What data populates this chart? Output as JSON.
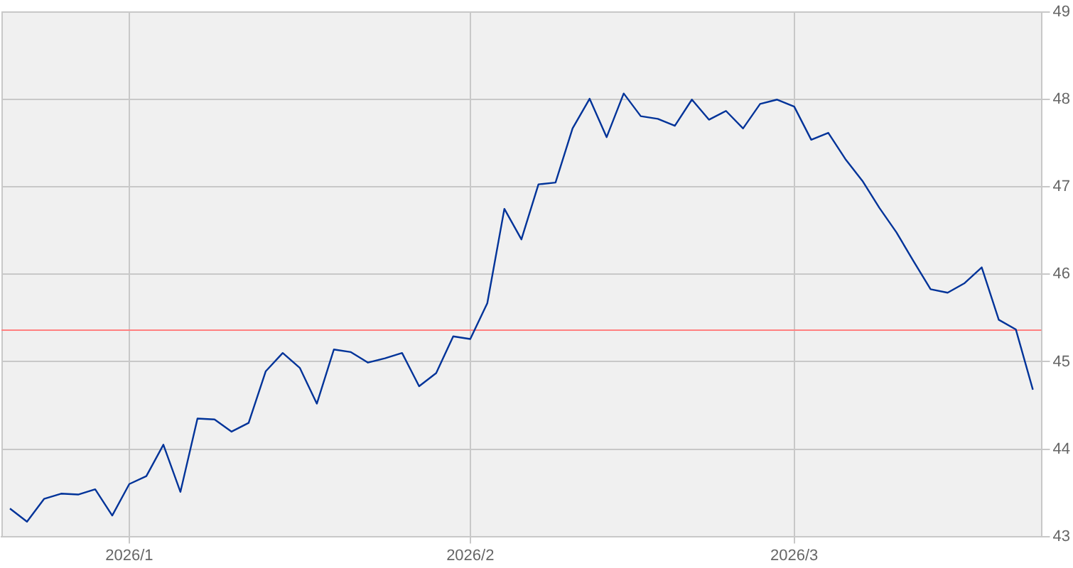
{
  "chart_data": {
    "type": "line",
    "categories": [
      null,
      null,
      null,
      null,
      null,
      null,
      null,
      "2026/1",
      null,
      null,
      null,
      null,
      null,
      null,
      null,
      null,
      null,
      null,
      null,
      null,
      null,
      null,
      null,
      null,
      null,
      null,
      null,
      "2026/2",
      null,
      null,
      null,
      null,
      null,
      null,
      null,
      null,
      null,
      null,
      null,
      null,
      null,
      null,
      null,
      null,
      null,
      null,
      "2026/3",
      null,
      null,
      null,
      null,
      null,
      null,
      null,
      null,
      null,
      null,
      null,
      null,
      null,
      null
    ],
    "values": [
      43.32,
      43.17,
      43.43,
      43.49,
      43.48,
      43.54,
      43.24,
      43.6,
      43.69,
      44.05,
      43.51,
      44.35,
      44.34,
      44.2,
      44.3,
      44.89,
      45.1,
      44.93,
      44.52,
      45.14,
      45.11,
      44.99,
      45.04,
      45.1,
      44.72,
      44.87,
      45.29,
      45.26,
      45.67,
      46.75,
      46.4,
      47.03,
      47.05,
      47.67,
      48.01,
      47.57,
      48.07,
      47.81,
      47.78,
      47.7,
      48.0,
      47.77,
      47.87,
      47.67,
      47.95,
      48.0,
      47.92,
      47.54,
      47.62,
      47.32,
      47.07,
      46.76,
      46.48,
      46.15,
      45.83,
      45.79,
      45.9,
      46.08,
      45.48,
      45.37,
      44.68
    ],
    "color": "#003399",
    "ylim": [
      43,
      49
    ],
    "yticks": [
      43,
      44,
      45,
      46,
      47,
      48,
      49
    ],
    "ref_lines": [
      {
        "axis": "y",
        "value": 45.37,
        "color": "#ff8080"
      }
    ],
    "grid": true,
    "marker": "none",
    "line_style": "solid"
  }
}
